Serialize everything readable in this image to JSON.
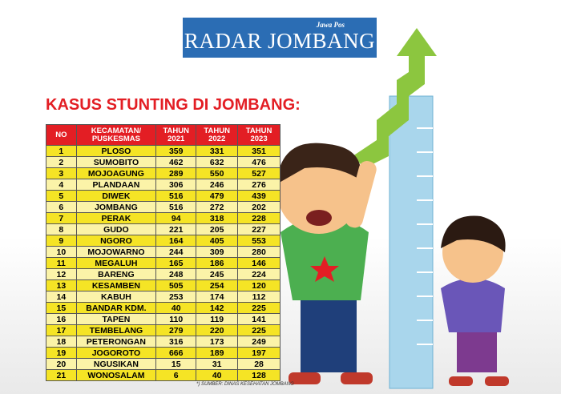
{
  "header": {
    "brand_top": "Jawa Pos",
    "brand": "RADAR JOMBANG"
  },
  "title": "KASUS STUNTING DI JOMBANG:",
  "table": {
    "columns": [
      "NO",
      "KECAMATAN/ PUSKESMAS",
      "TAHUN 2021",
      "TAHUN 2022",
      "TAHUN 2023"
    ],
    "rows": [
      [
        1,
        "PLOSO",
        359,
        331,
        351
      ],
      [
        2,
        "SUMOBITO",
        462,
        632,
        476
      ],
      [
        3,
        "MOJOAGUNG",
        289,
        550,
        527
      ],
      [
        4,
        "PLANDAAN",
        306,
        246,
        276
      ],
      [
        5,
        "DIWEK",
        516,
        479,
        439
      ],
      [
        6,
        "JOMBANG",
        516,
        272,
        202
      ],
      [
        7,
        "PERAK",
        94,
        318,
        228
      ],
      [
        8,
        "GUDO",
        221,
        205,
        227
      ],
      [
        9,
        "NGORO",
        164,
        405,
        553
      ],
      [
        10,
        "MOJOWARNO",
        244,
        309,
        280
      ],
      [
        11,
        "MEGALUH",
        165,
        186,
        146
      ],
      [
        12,
        "BARENG",
        248,
        245,
        224
      ],
      [
        13,
        "KESAMBEN",
        505,
        254,
        120
      ],
      [
        14,
        "KABUH",
        253,
        174,
        112
      ],
      [
        15,
        "BANDAR KDM.",
        40,
        142,
        225
      ],
      [
        16,
        "TAPEN",
        110,
        119,
        141
      ],
      [
        17,
        "TEMBELANG",
        279,
        220,
        225
      ],
      [
        18,
        "PETERONGAN",
        316,
        173,
        249
      ],
      [
        19,
        "JOGOROTO",
        666,
        189,
        197
      ],
      [
        20,
        "NGUSIKAN",
        15,
        31,
        28
      ],
      [
        21,
        "WONOSALAM",
        6,
        40,
        128
      ]
    ]
  },
  "source": "*) SUMBER: DINAS KESEHATAN JOMBANG"
}
